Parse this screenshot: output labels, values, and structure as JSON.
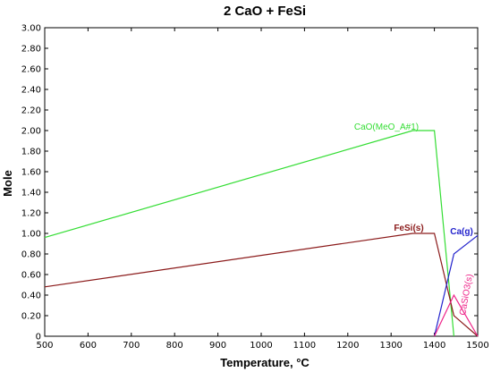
{
  "chart_data": {
    "type": "line",
    "title": "2 CaO + FeSi",
    "xlabel": "Temperature, °C",
    "ylabel": "Mole",
    "xlim": [
      500,
      1500
    ],
    "ylim": [
      0,
      3.0
    ],
    "x_ticks": [
      500,
      600,
      700,
      800,
      900,
      1000,
      1100,
      1200,
      1300,
      1400,
      1500
    ],
    "x_tick_labels": [
      "500",
      "600",
      "700",
      "800",
      "900",
      "1000",
      "1100",
      "1200",
      "1300",
      "1400",
      "1500"
    ],
    "y_ticks": [
      0,
      0.2,
      0.4,
      0.6,
      0.8,
      1.0,
      1.2,
      1.4,
      1.6,
      1.8,
      2.0,
      2.2,
      2.4,
      2.6,
      2.8,
      3.0
    ],
    "y_tick_labels": [
      "0",
      "0.20",
      "0.40",
      "0.60",
      "0.80",
      "1.00",
      "1.20",
      "1.40",
      "1.60",
      "1.80",
      "2.00",
      "2.20",
      "2.40",
      "2.60",
      "2.80",
      "3.00"
    ],
    "grid": false,
    "series": [
      {
        "name": "CaO(MeO_A#1)",
        "color": "#33dd33",
        "x": [
          500,
          1350,
          1400,
          1445
        ],
        "y": [
          0.96,
          2.0,
          2.0,
          0
        ]
      },
      {
        "name": "FeSi(s)",
        "color": "#8b1a1a",
        "x": [
          500,
          1350,
          1400,
          1445,
          1500
        ],
        "y": [
          0.48,
          1.0,
          1.0,
          0.2,
          0
        ]
      },
      {
        "name": "Ca(g)",
        "color": "#2222cc",
        "x": [
          1400,
          1445,
          1500
        ],
        "y": [
          0,
          0.8,
          0.98
        ]
      },
      {
        "name": "CaSiO3(s)",
        "color": "#ee2288",
        "x": [
          1400,
          1445,
          1500
        ],
        "y": [
          0,
          0.4,
          0
        ]
      }
    ]
  }
}
